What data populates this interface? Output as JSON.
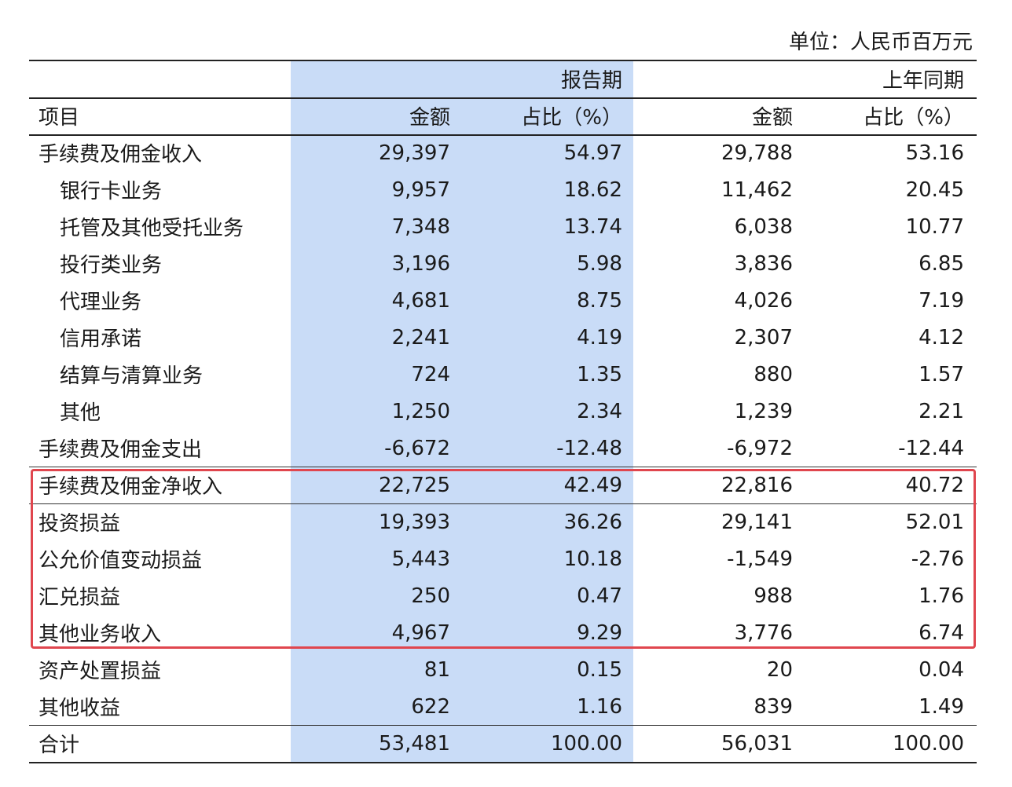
{
  "unit_label": "单位：人民币百万元",
  "header": {
    "period_current": "报告期",
    "period_prior": "上年同期",
    "item_col": "项目",
    "amount_col": "金额",
    "share_col": "占比（%）"
  },
  "rows": [
    {
      "label": "手续费及佣金收入",
      "a1": "29,397",
      "p1": "54.97",
      "a2": "29,788",
      "p2": "53.16"
    },
    {
      "label": "银行卡业务",
      "a1": "9,957",
      "p1": "18.62",
      "a2": "11,462",
      "p2": "20.45"
    },
    {
      "label": "托管及其他受托业务",
      "a1": "7,348",
      "p1": "13.74",
      "a2": "6,038",
      "p2": "10.77"
    },
    {
      "label": "投行类业务",
      "a1": "3,196",
      "p1": "5.98",
      "a2": "3,836",
      "p2": "6.85"
    },
    {
      "label": "代理业务",
      "a1": "4,681",
      "p1": "8.75",
      "a2": "4,026",
      "p2": "7.19"
    },
    {
      "label": "信用承诺",
      "a1": "2,241",
      "p1": "4.19",
      "a2": "2,307",
      "p2": "4.12"
    },
    {
      "label": "结算与清算业务",
      "a1": "724",
      "p1": "1.35",
      "a2": "880",
      "p2": "1.57"
    },
    {
      "label": "其他",
      "a1": "1,250",
      "p1": "2.34",
      "a2": "1,239",
      "p2": "2.21"
    },
    {
      "label": "手续费及佣金支出",
      "a1": "-6,672",
      "p1": "-12.48",
      "a2": "-6,972",
      "p2": "-12.44"
    },
    {
      "label": "手续费及佣金净收入",
      "a1": "22,725",
      "p1": "42.49",
      "a2": "22,816",
      "p2": "40.72"
    },
    {
      "label": "投资损益",
      "a1": "19,393",
      "p1": "36.26",
      "a2": "29,141",
      "p2": "52.01"
    },
    {
      "label": "公允价值变动损益",
      "a1": "5,443",
      "p1": "10.18",
      "a2": "-1,549",
      "p2": "-2.76"
    },
    {
      "label": "汇兑损益",
      "a1": "250",
      "p1": "0.47",
      "a2": "988",
      "p2": "1.76"
    },
    {
      "label": "其他业务收入",
      "a1": "4,967",
      "p1": "9.29",
      "a2": "3,776",
      "p2": "6.74"
    },
    {
      "label": "资产处置损益",
      "a1": "81",
      "p1": "0.15",
      "a2": "20",
      "p2": "0.04"
    },
    {
      "label": "其他收益",
      "a1": "622",
      "p1": "1.16",
      "a2": "839",
      "p2": "1.49"
    },
    {
      "label": "合计",
      "a1": "53,481",
      "p1": "100.00",
      "a2": "56,031",
      "p2": "100.00"
    }
  ],
  "highlight_color": "#e0464e",
  "shade_color": "#c9dcf7"
}
